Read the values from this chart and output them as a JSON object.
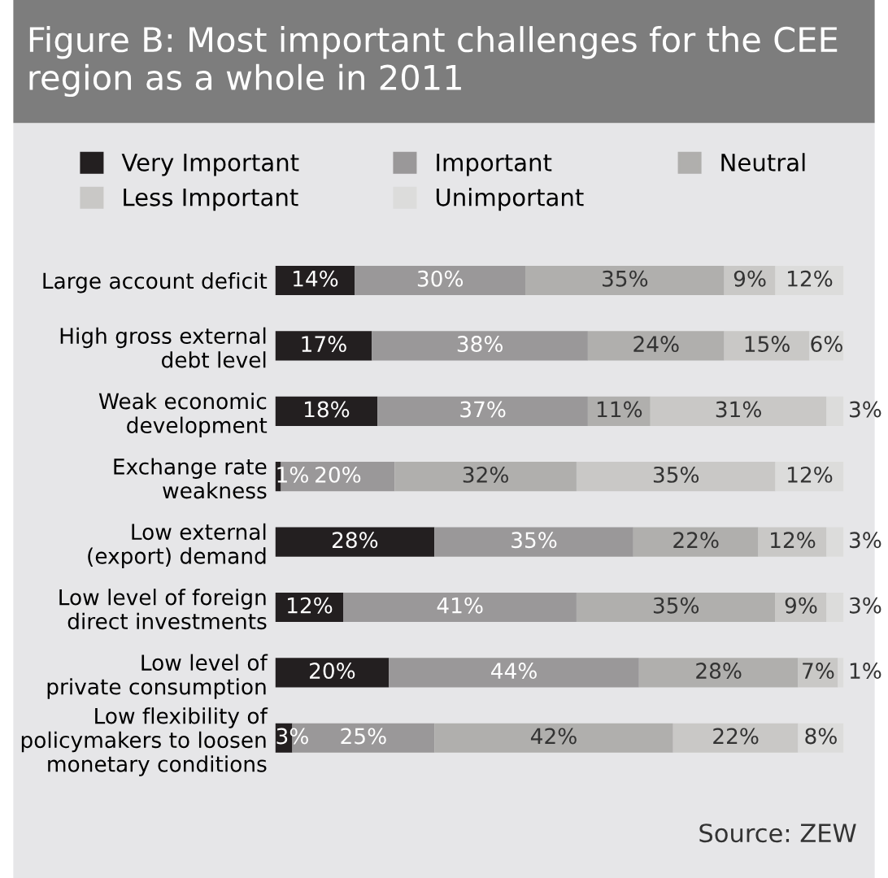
{
  "chart_data": {
    "type": "bar",
    "stacked": true,
    "orientation": "horizontal",
    "title": "Figure B: Most important challenges for the CEE region as a whole in 2011",
    "categories": [
      "Large account deficit",
      "High gross external\ndebt level",
      "Weak economic\ndevelopment",
      "Exchange rate\nweakness",
      "Low external\n(export) demand",
      "Low level of foreign\ndirect investments",
      "Low level of\nprivate consumption",
      "Low flexibility of\npolicymakers to loosen\nmonetary conditions"
    ],
    "series": [
      {
        "name": "Very Important",
        "color": "#231f20",
        "values": [
          14,
          17,
          18,
          1,
          28,
          12,
          20,
          3
        ],
        "value_labels": [
          "14%",
          "17%",
          "18%",
          "1%",
          "28%",
          "12%",
          "20%",
          "3%"
        ]
      },
      {
        "name": "Important",
        "color": "#9a9899",
        "values": [
          30,
          38,
          37,
          20,
          35,
          41,
          44,
          25
        ],
        "value_labels": [
          "30%",
          "38%",
          "37%",
          "20%",
          "35%",
          "41%",
          "44%",
          "25%"
        ]
      },
      {
        "name": "Neutral",
        "color": "#b0afad",
        "values": [
          35,
          24,
          11,
          32,
          22,
          35,
          28,
          42
        ],
        "value_labels": [
          "35%",
          "24%",
          "11%",
          "32%",
          "22%",
          "35%",
          "28%",
          "42%"
        ]
      },
      {
        "name": "Less Important",
        "color": "#c9c8c6",
        "values": [
          9,
          15,
          31,
          35,
          12,
          9,
          7,
          22
        ],
        "value_labels": [
          "9%",
          "15%",
          "31%",
          "35%",
          "12%",
          "9%",
          "7%",
          "22%"
        ]
      },
      {
        "name": "Unimportant",
        "color": "#dcdcdb",
        "values": [
          12,
          6,
          3,
          12,
          3,
          3,
          1,
          8
        ],
        "value_labels": [
          "12%",
          "6%",
          "3%",
          "12%",
          "3%",
          "3%",
          "1%",
          "8%"
        ]
      }
    ],
    "legend": "top",
    "annotations": [
      "Source: ZEW"
    ]
  }
}
